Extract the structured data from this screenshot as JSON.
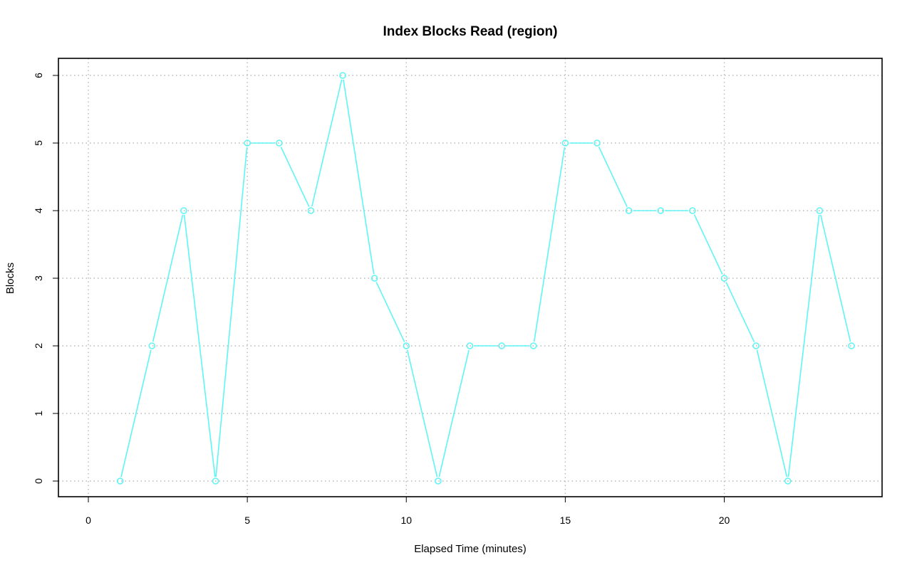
{
  "chart_data": {
    "type": "line",
    "title": "Index Blocks Read (region)",
    "xlabel": "Elapsed Time (minutes)",
    "ylabel": "Blocks",
    "xlim": [
      0,
      24
    ],
    "ylim": [
      0,
      6
    ],
    "x_ticks": [
      0,
      5,
      10,
      15,
      20
    ],
    "y_ticks": [
      0,
      1,
      2,
      3,
      4,
      5,
      6
    ],
    "grid": true,
    "legend": "none",
    "series": [
      {
        "color": "#5ff5f5",
        "marker": "circle",
        "x": [
          1,
          2,
          3,
          4,
          5,
          6,
          7,
          8,
          9,
          10,
          11,
          12,
          13,
          14,
          15,
          16,
          17,
          18,
          19,
          20,
          21,
          22,
          23,
          24
        ],
        "values": [
          0,
          2,
          4,
          0,
          5,
          5,
          4,
          6,
          3,
          2,
          0,
          2,
          2,
          2,
          5,
          5,
          4,
          4,
          4,
          3,
          2,
          0,
          4,
          2
        ]
      }
    ]
  }
}
